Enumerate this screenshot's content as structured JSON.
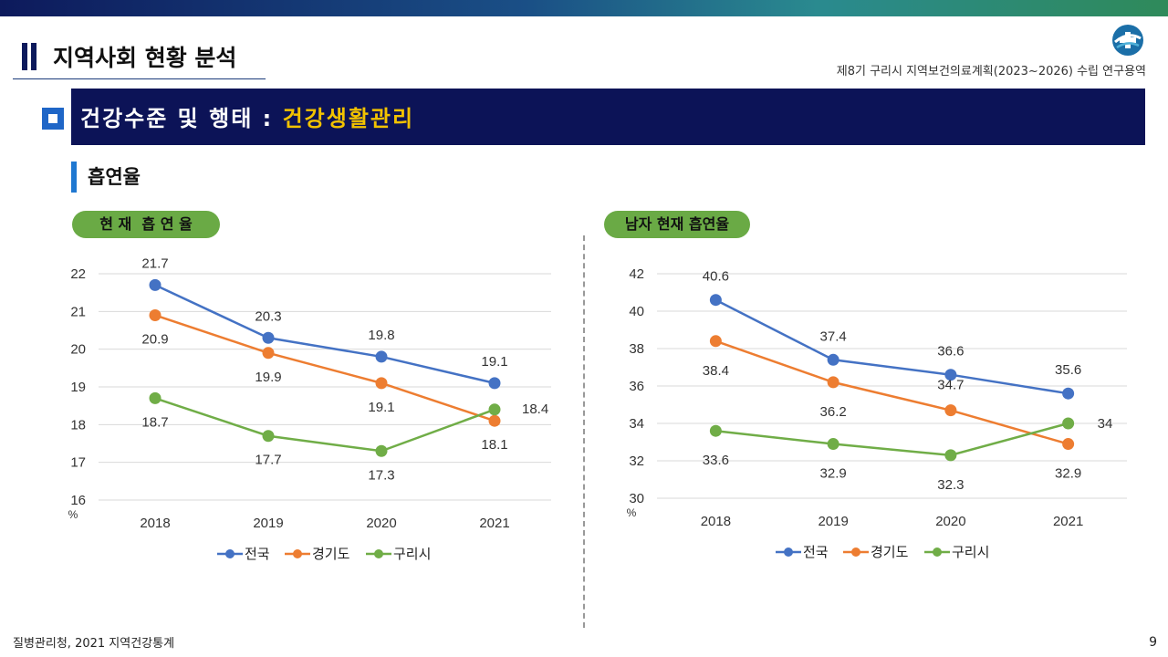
{
  "header": {
    "title": "지역사회 현황 분석",
    "subtitle": "제8기 구리시 지역보건의료계획(2023~2026) 수립 연구용역"
  },
  "section": {
    "prefix": "건강수준 및 행태 : ",
    "highlight": "건강생활관리"
  },
  "subheading": "흡연율",
  "footer": {
    "source": "질병관리청, 2021 지역건강통계",
    "page": "9"
  },
  "colors": {
    "topbar": "#1a4f86",
    "section_bg": "#0c1357",
    "highlight": "#f2c200",
    "pill": "#6aaa45",
    "series": [
      "#4472c4",
      "#ed7d31",
      "#70ad47"
    ]
  },
  "chart_data": [
    {
      "type": "line",
      "title": "현 재  흡 연 율",
      "ylabel": "%",
      "x": [
        "2018",
        "2019",
        "2020",
        "2021"
      ],
      "ylim": [
        16,
        22
      ],
      "yticks": [
        16,
        17,
        18,
        19,
        20,
        21,
        22
      ],
      "grid": true,
      "legend": "bottom",
      "series": [
        {
          "name": "전국",
          "values": [
            21.7,
            20.3,
            19.8,
            19.1
          ],
          "labels": [
            "21.7",
            "20.3",
            "19.8",
            "19.1"
          ]
        },
        {
          "name": "경기도",
          "values": [
            20.9,
            19.9,
            19.1,
            18.1
          ],
          "labels": [
            "20.9",
            "19.9",
            "19.1",
            "18.1"
          ]
        },
        {
          "name": "구리시",
          "values": [
            18.7,
            17.7,
            17.3,
            18.4
          ],
          "labels": [
            "18.7",
            "17.7",
            "17.3",
            "18.4"
          ]
        }
      ]
    },
    {
      "type": "line",
      "title": "남자 현재 흡연율",
      "ylabel": "%",
      "x": [
        "2018",
        "2019",
        "2020",
        "2021"
      ],
      "ylim": [
        30,
        42
      ],
      "yticks": [
        30,
        32,
        34,
        36,
        38,
        40,
        42
      ],
      "grid": true,
      "legend": "bottom",
      "series": [
        {
          "name": "전국",
          "values": [
            40.6,
            37.4,
            36.6,
            35.6
          ],
          "labels": [
            "40.6",
            "37.4",
            "36.6",
            "35.6"
          ]
        },
        {
          "name": "경기도",
          "values": [
            38.4,
            36.2,
            34.7,
            32.9
          ],
          "labels": [
            "38.4",
            "36.2",
            "34.7",
            "32.9"
          ]
        },
        {
          "name": "구리시",
          "values": [
            33.6,
            32.9,
            32.3,
            34.0
          ],
          "labels": [
            "33.6",
            "32.9",
            "32.3",
            "34"
          ]
        }
      ]
    }
  ]
}
